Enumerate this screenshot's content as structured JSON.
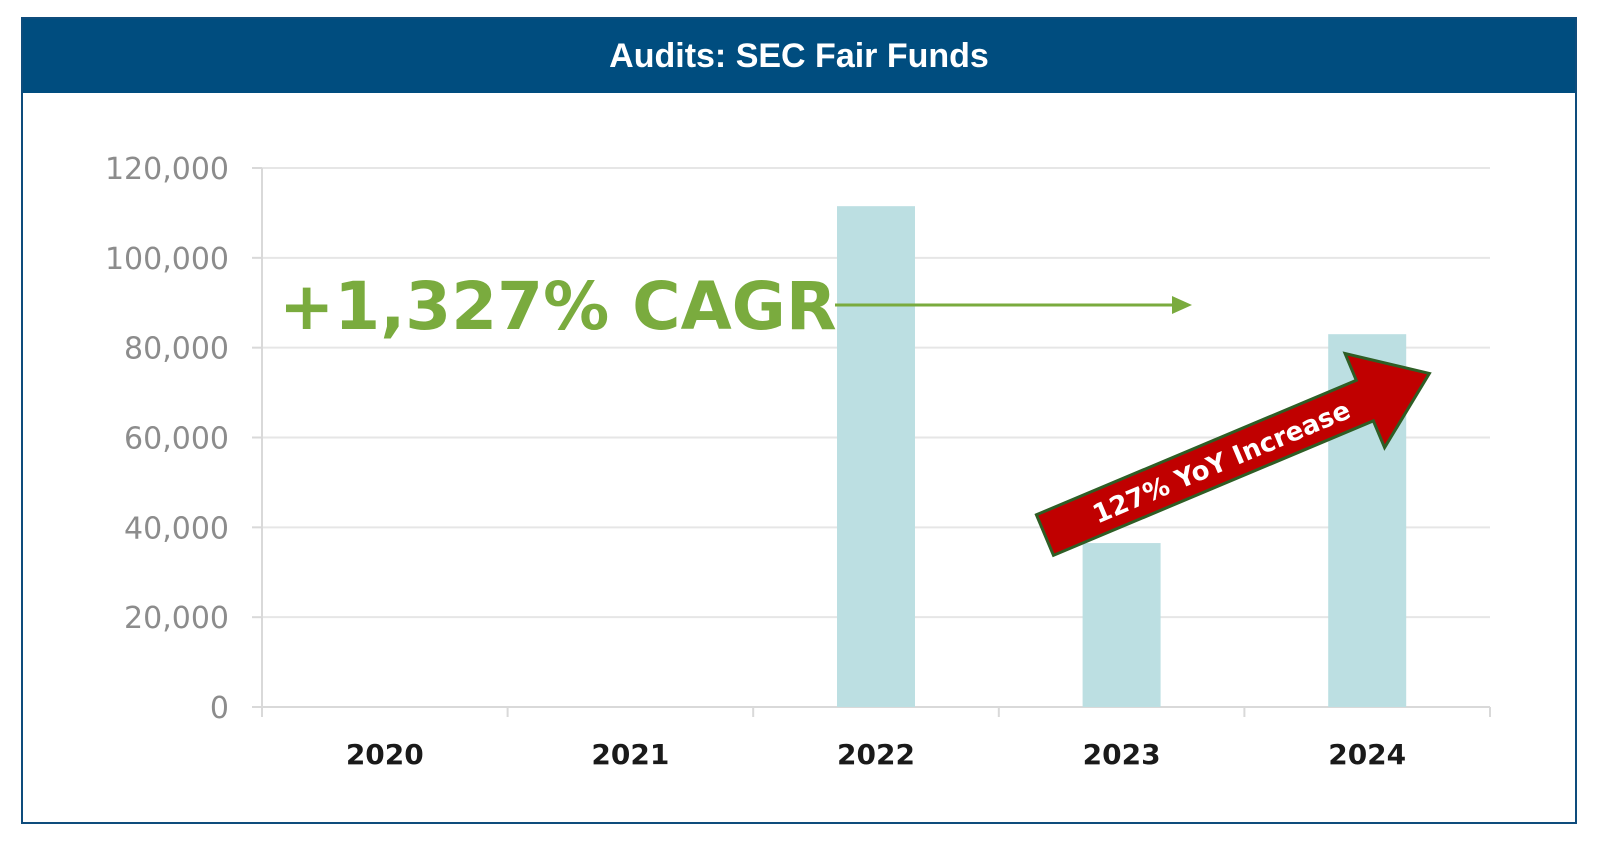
{
  "title": "Audits: SEC Fair Funds",
  "colors": {
    "header_bg": "#004d7f",
    "bar": "#bcdfe2",
    "cagr_green": "#7aab3e",
    "yoy_arrow_fill": "#c00000",
    "yoy_arrow_border": "#2e5e25",
    "grid": "#e6e6e6",
    "tick_text": "#8c8c8c"
  },
  "chart_data": {
    "type": "bar",
    "title": "Audits: SEC Fair Funds",
    "categories": [
      "2020",
      "2021",
      "2022",
      "2023",
      "2024"
    ],
    "values": [
      0,
      0,
      111500,
      36500,
      83000
    ],
    "ylim": [
      0,
      120000
    ],
    "yticks": [
      0,
      20000,
      40000,
      60000,
      80000,
      100000,
      120000
    ],
    "ytick_labels": [
      "0",
      "20,000",
      "40,000",
      "60,000",
      "80,000",
      "100,000",
      "120,000"
    ],
    "xlabel": "",
    "ylabel": "",
    "grid": true,
    "annotations": [
      {
        "text": "+1,327% CAGR",
        "kind": "cagr-callout"
      },
      {
        "text": "127% YoY Increase",
        "kind": "yoy-arrow"
      }
    ]
  }
}
